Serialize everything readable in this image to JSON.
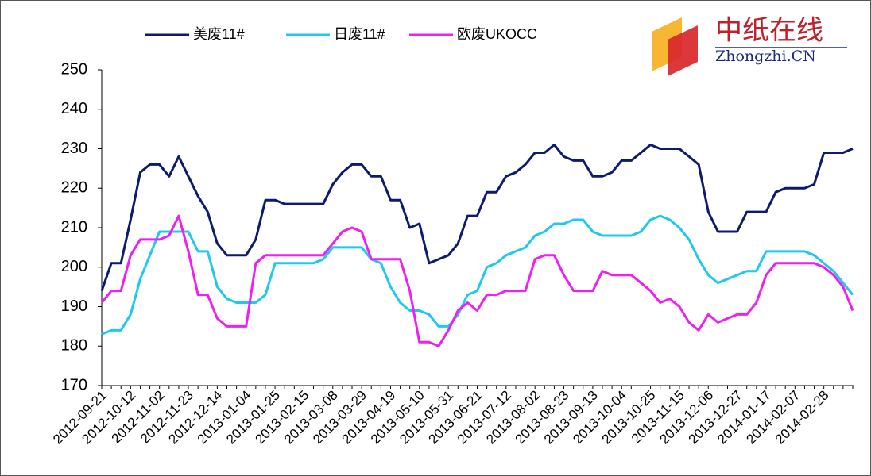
{
  "logo": {
    "name": "中纸在线",
    "site": "Zhongzhi.CN"
  },
  "chart_data": {
    "type": "line",
    "categories": [
      "2012-09-21",
      null,
      null,
      "2012-10-12",
      null,
      null,
      "2012-11-02",
      null,
      null,
      "2012-11-23",
      null,
      null,
      "2012-12-14",
      null,
      null,
      "2013-01-04",
      null,
      null,
      "2013-01-25",
      null,
      null,
      "2013-02-15",
      null,
      null,
      "2013-03-08",
      null,
      null,
      "2013-03-29",
      null,
      null,
      "2013-04-19",
      null,
      null,
      "2013-05-10",
      null,
      null,
      "2013-05-31",
      null,
      null,
      "2013-06-21",
      null,
      null,
      "2013-07-12",
      null,
      null,
      "2013-08-02",
      null,
      null,
      "2013-08-23",
      null,
      null,
      "2013-09-13",
      null,
      null,
      "2013-10-04",
      null,
      null,
      "2013-10-25",
      null,
      null,
      "2013-11-15",
      null,
      null,
      "2013-12-06",
      null,
      null,
      "2013-12-27",
      null,
      null,
      "2014-01-17",
      null,
      null,
      "2014-02-07",
      null,
      null,
      "2014-02-28",
      null,
      null,
      null
    ],
    "series": [
      {
        "name": "美废11#",
        "color": "#0d1a6e",
        "values": [
          194,
          201,
          201,
          212,
          224,
          226,
          226,
          223,
          228,
          223,
          218,
          214,
          206,
          203,
          203,
          203,
          207,
          217,
          217,
          216,
          216,
          216,
          216,
          216,
          221,
          224,
          226,
          226,
          223,
          223,
          217,
          217,
          210,
          211,
          201,
          202,
          203,
          206,
          213,
          213,
          219,
          219,
          223,
          224,
          226,
          229,
          229,
          231,
          228,
          227,
          227,
          223,
          223,
          224,
          227,
          227,
          229,
          231,
          230,
          230,
          230,
          228,
          226,
          214,
          209,
          209,
          209,
          214,
          214,
          214,
          219,
          220,
          220,
          220,
          221,
          229,
          229,
          229,
          230
        ]
      },
      {
        "name": "日废11#",
        "color": "#1ec8f0",
        "values": [
          183,
          184,
          184,
          188,
          197,
          203,
          209,
          209,
          209,
          209,
          204,
          204,
          195,
          192,
          191,
          191,
          191,
          193,
          201,
          201,
          201,
          201,
          201,
          202,
          205,
          205,
          205,
          205,
          202,
          201,
          195,
          191,
          189,
          189,
          188,
          185,
          185,
          188,
          193,
          194,
          200,
          201,
          203,
          204,
          205,
          208,
          209,
          211,
          211,
          212,
          212,
          209,
          208,
          208,
          208,
          208,
          209,
          212,
          213,
          212,
          210,
          207,
          202,
          198,
          196,
          197,
          198,
          199,
          199,
          204,
          204,
          204,
          204,
          204,
          203,
          201,
          199,
          196,
          193
        ]
      },
      {
        "name": "欧废UKOCC",
        "color": "#f01ef0",
        "values": [
          191,
          194,
          194,
          203,
          207,
          207,
          207,
          208,
          213,
          204,
          193,
          193,
          187,
          185,
          185,
          185,
          201,
          203,
          203,
          203,
          203,
          203,
          203,
          203,
          206,
          209,
          210,
          209,
          202,
          202,
          202,
          202,
          194,
          181,
          181,
          180,
          184,
          189,
          191,
          189,
          193,
          193,
          194,
          194,
          194,
          202,
          203,
          203,
          198,
          194,
          194,
          194,
          199,
          198,
          198,
          198,
          196,
          194,
          191,
          192,
          190,
          186,
          184,
          188,
          186,
          187,
          188,
          188,
          191,
          198,
          201,
          201,
          201,
          201,
          201,
          200,
          198,
          195,
          189
        ]
      }
    ],
    "ylim": [
      170,
      250
    ],
    "yticks": [
      170,
      180,
      190,
      200,
      210,
      220,
      230,
      240,
      250
    ]
  }
}
